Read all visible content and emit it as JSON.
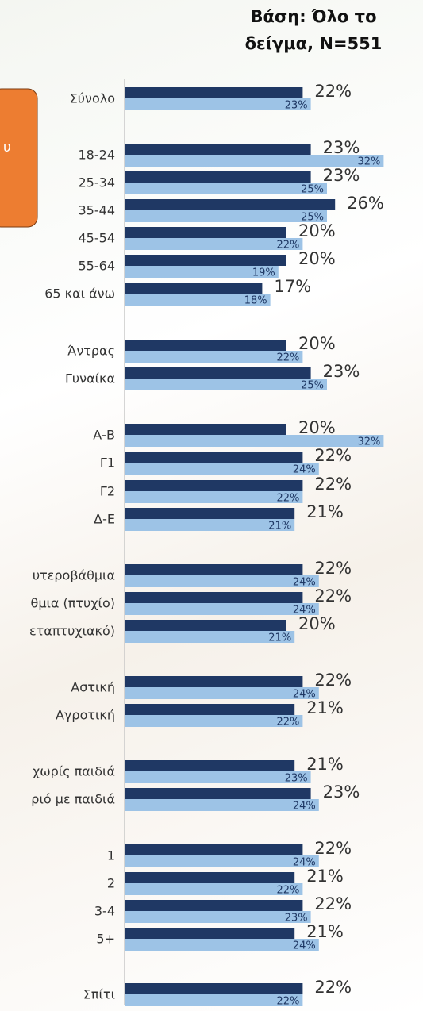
{
  "chart_data": {
    "type": "bar",
    "orientation": "horizontal",
    "title": "Βάση: Όλο το δείγμα, N=551",
    "annotation": "υ",
    "categories": [
      "Σύνολο",
      "18-24",
      "25-34",
      "35-44",
      "45-54",
      "55-64",
      "65 και άνω",
      "Άντρας",
      "Γυναίκα",
      "Α-Β",
      "Γ1",
      "Γ2",
      "Δ-Ε",
      "υτεροβάθμια",
      "θμια (πτυχίο)",
      "εταπτυχιακό)",
      "Αστική",
      "Αγροτική",
      "χωρίς παιδιά",
      "ριό με παιδιά",
      "1",
      "2",
      "3-4",
      "5+",
      "Σπίτι"
    ],
    "series": [
      {
        "color": "#1f3864",
        "values": [
          22,
          23,
          23,
          26,
          20,
          20,
          17,
          20,
          23,
          20,
          22,
          22,
          21,
          22,
          22,
          20,
          22,
          21,
          21,
          23,
          22,
          21,
          22,
          21,
          22
        ],
        "value_labels": [
          "22%",
          "23%",
          "23%",
          "26%",
          "20%",
          "20%",
          "17%",
          "20%",
          "23%",
          "20%",
          "22%",
          "22%",
          "21%",
          "22%",
          "22%",
          "20%",
          "22%",
          "21%",
          "21%",
          "23%",
          "22%",
          "21%",
          "22%",
          "21%",
          "22%"
        ]
      },
      {
        "color": "#9dc3e6",
        "values": [
          23,
          32,
          25,
          25,
          22,
          19,
          18,
          22,
          25,
          32,
          24,
          22,
          21,
          24,
          24,
          21,
          24,
          22,
          23,
          24,
          24,
          22,
          23,
          24,
          22
        ],
        "value_labels": [
          "23%",
          "32%",
          "25%",
          "25%",
          "22%",
          "19%",
          "18%",
          "22%",
          "25%",
          "32%",
          "24%",
          "22%",
          "21%",
          "24%",
          "24%",
          "21%",
          "24%",
          "22%",
          "23%",
          "24%",
          "24%",
          "22%",
          "23%",
          "24%",
          "22%"
        ]
      }
    ]
  }
}
